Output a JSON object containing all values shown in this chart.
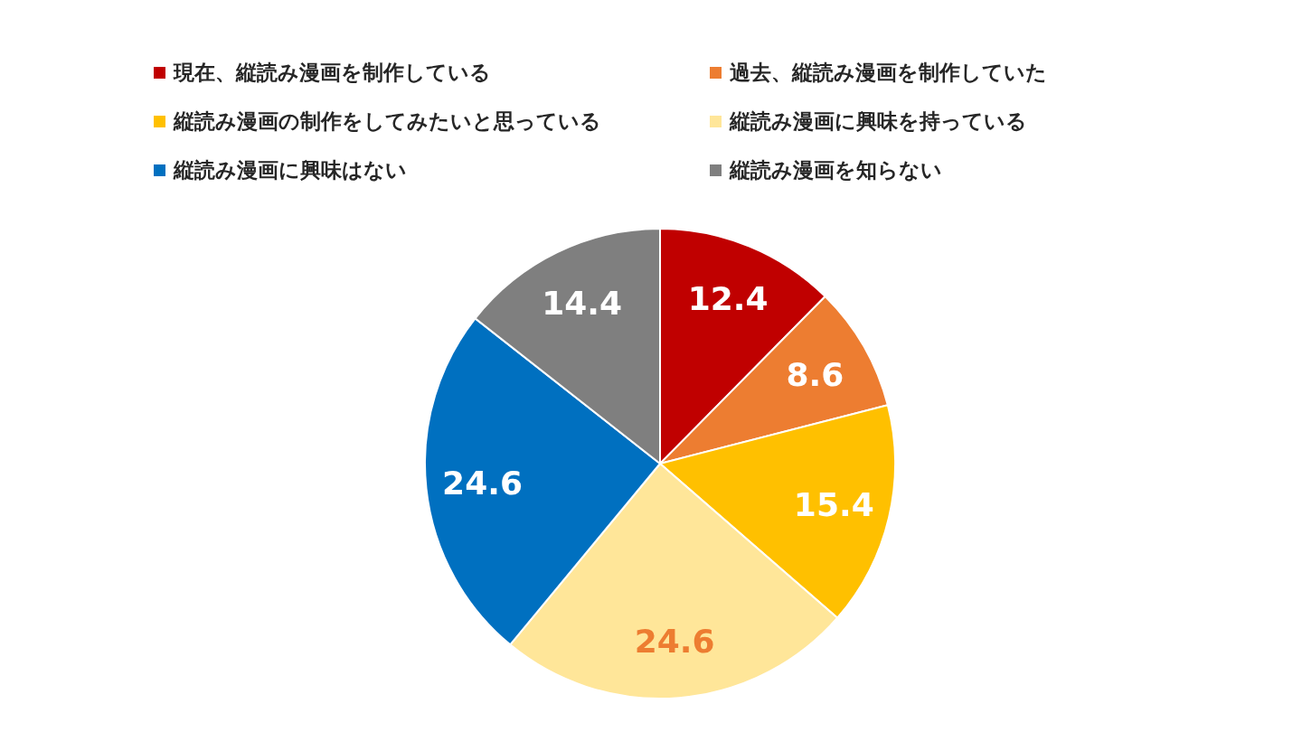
{
  "chart_data": {
    "type": "pie",
    "categories": [
      "現在、縦読み漫画を制作している",
      "過去、縦読み漫画を制作していた",
      "縦読み漫画の制作をしてみたいと思っている",
      "縦読み漫画に興味を持っている",
      "縦読み漫画に興味はない",
      "縦読み漫画を知らない"
    ],
    "values": [
      12.4,
      8.6,
      15.4,
      24.6,
      24.6,
      14.4
    ],
    "colors": [
      "#c00000",
      "#ed7d31",
      "#ffc000",
      "#ffe699",
      "#0070c0",
      "#7f7f7f"
    ],
    "data_labels": true,
    "legend": "top"
  }
}
